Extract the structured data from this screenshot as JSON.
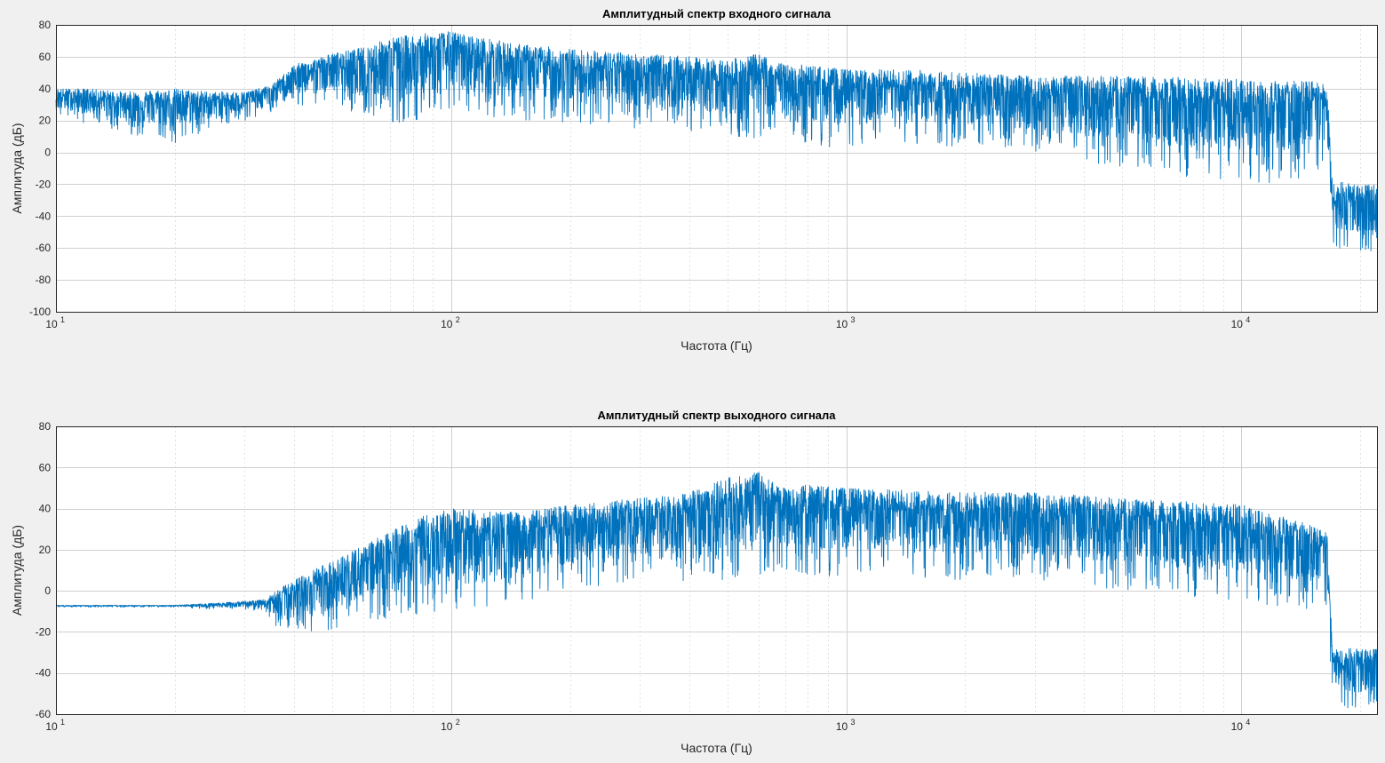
{
  "chart_data": [
    {
      "type": "line",
      "title": "Амплитудный спектр входного сигнала",
      "xlabel": "Частота (Гц)",
      "ylabel": "Амплитуда (дБ)",
      "xscale": "log",
      "xlim": [
        10,
        22050
      ],
      "ylim": [
        -100,
        80
      ],
      "xticks": [
        10,
        100,
        1000,
        10000
      ],
      "xtick_labels": [
        {
          "base": "10",
          "exp": "1"
        },
        {
          "base": "10",
          "exp": "2"
        },
        {
          "base": "10",
          "exp": "3"
        },
        {
          "base": "10",
          "exp": "4"
        }
      ],
      "yticks": [
        80,
        60,
        40,
        20,
        0,
        -20,
        -40,
        -60,
        -80,
        -100
      ],
      "grid": true,
      "color": "#0072bd",
      "series": [
        {
          "x": [
            10,
            12,
            15,
            20,
            25,
            30,
            35,
            40,
            50,
            60,
            70,
            80,
            100,
            120,
            150,
            200,
            300,
            400,
            500,
            600,
            700,
            800,
            1000,
            1500,
            2000,
            3000,
            5000,
            7000,
            10000,
            13000,
            15000,
            16500,
            17000,
            20000,
            22050
          ],
          "upper": [
            40,
            40,
            38,
            40,
            38,
            38,
            42,
            55,
            62,
            66,
            72,
            74,
            76,
            72,
            68,
            65,
            62,
            60,
            58,
            62,
            55,
            55,
            52,
            52,
            50,
            48,
            48,
            47,
            46,
            45,
            45,
            42,
            -18,
            -20,
            -20
          ],
          "lower": [
            22,
            18,
            12,
            5,
            15,
            20,
            25,
            28,
            32,
            22,
            18,
            20,
            25,
            22,
            20,
            18,
            15,
            12,
            10,
            8,
            10,
            5,
            2,
            5,
            3,
            0,
            -10,
            -15,
            -18,
            -20,
            -15,
            -10,
            -60,
            -65,
            -60
          ]
        }
      ]
    },
    {
      "type": "line",
      "title": "Амплитудный спектр выходного сигнала",
      "xlabel": "Частота (Гц)",
      "ylabel": "Амплитуда (дБ)",
      "xscale": "log",
      "xlim": [
        10,
        22050
      ],
      "ylim": [
        -60,
        80
      ],
      "xticks": [
        10,
        100,
        1000,
        10000
      ],
      "xtick_labels": [
        {
          "base": "10",
          "exp": "1"
        },
        {
          "base": "10",
          "exp": "2"
        },
        {
          "base": "10",
          "exp": "3"
        },
        {
          "base": "10",
          "exp": "4"
        }
      ],
      "yticks": [
        80,
        60,
        40,
        20,
        0,
        -20,
        -40,
        -60
      ],
      "grid": true,
      "color": "#0072bd",
      "series": [
        {
          "x": [
            10,
            15,
            20,
            25,
            30,
            34,
            36,
            40,
            50,
            60,
            80,
            100,
            150,
            200,
            300,
            400,
            500,
            600,
            700,
            800,
            1000,
            2000,
            3000,
            5000,
            10000,
            13000,
            15000,
            16500,
            17000,
            20000,
            22050
          ],
          "upper": [
            -7,
            -7,
            -7,
            -6,
            -5,
            -4,
            0,
            5,
            15,
            22,
            35,
            40,
            38,
            42,
            45,
            48,
            55,
            58,
            50,
            52,
            50,
            48,
            48,
            45,
            42,
            36,
            32,
            28,
            -28,
            -28,
            -28
          ],
          "lower": [
            -8,
            -8,
            -8,
            -9,
            -9,
            -10,
            -18,
            -20,
            -20,
            -15,
            -12,
            -10,
            -8,
            0,
            5,
            2,
            5,
            8,
            10,
            5,
            8,
            5,
            5,
            0,
            -5,
            -8,
            -10,
            -8,
            -55,
            -60,
            -55
          ]
        }
      ]
    }
  ]
}
